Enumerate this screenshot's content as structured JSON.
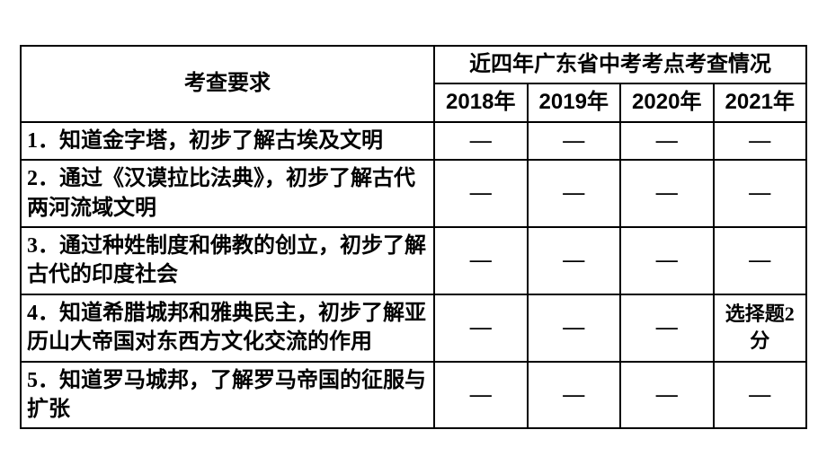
{
  "table": {
    "header": {
      "requirement_label": "考查要求",
      "year_group_label": "近四年广东省中考考点考查情况",
      "years": [
        "2018年",
        "2019年",
        "2020年",
        "2021年"
      ]
    },
    "rows": [
      {
        "num": "1．",
        "text": "知道金字塔，初步了解古埃及文明",
        "cells": [
          "—",
          "—",
          "—",
          "—"
        ]
      },
      {
        "num": "2．",
        "text": "通过《汉谟拉比法典》，初步了解古代两河流域文明",
        "cells": [
          "—",
          "—",
          "—",
          "—"
        ]
      },
      {
        "num": "3．",
        "text": "通过种姓制度和佛教的创立，初步了解古代的印度社会",
        "cells": [
          "—",
          "—",
          "—",
          "—"
        ]
      },
      {
        "num": "4．",
        "text": "知道希腊城邦和雅典民主，初步了解亚历山大帝国对东西方文化交流的作用",
        "cells": [
          "—",
          "—",
          "—",
          "选择题2分"
        ]
      },
      {
        "num": "5．",
        "text": "知道罗马城邦，了解罗马帝国的征服与扩张",
        "cells": [
          "—",
          "—",
          "—",
          "—"
        ]
      }
    ],
    "colors": {
      "border": "#000000",
      "background": "#ffffff",
      "text": "#000000"
    },
    "fonts": {
      "header_size": 24,
      "cell_size": 24,
      "answer_size": 22
    }
  }
}
